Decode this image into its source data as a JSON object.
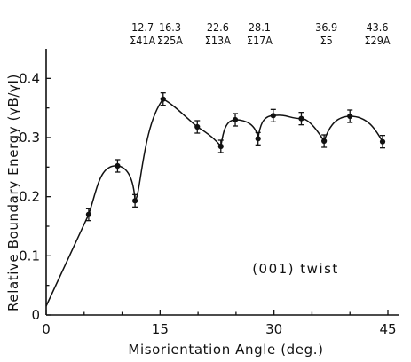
{
  "chart_data": {
    "type": "scatter",
    "xlabel": "Misorientation Angle (deg.)",
    "ylabel": "Relative Boundary Energy (γB/γI)",
    "annotation": "(001) twist",
    "xlim": [
      0,
      45
    ],
    "ylim": [
      0,
      0.45
    ],
    "xticks": [
      "0",
      "15",
      "30",
      "45"
    ],
    "yticks": [
      "0",
      "0.1",
      "0.2",
      "0.3",
      "0.4"
    ],
    "x": [
      5.6,
      9.4,
      11.7,
      15.4,
      19.9,
      23.0,
      24.9,
      27.9,
      29.9,
      33.6,
      36.6,
      40.0,
      44.3
    ],
    "y": [
      0.17,
      0.252,
      0.193,
      0.365,
      0.318,
      0.285,
      0.33,
      0.298,
      0.337,
      0.332,
      0.294,
      0.336,
      0.293
    ],
    "boundaries": [
      {
        "angle": "12.7",
        "sigma": "Σ41A"
      },
      {
        "angle": "16.3",
        "sigma": "Σ25A"
      },
      {
        "angle": "22.6",
        "sigma": "Σ13A"
      },
      {
        "angle": "28.1",
        "sigma": "Σ17A"
      },
      {
        "angle": "36.9",
        "sigma": "Σ5"
      },
      {
        "angle": "43.6",
        "sigma": "Σ29A"
      }
    ],
    "grid": false,
    "legend": "none"
  }
}
